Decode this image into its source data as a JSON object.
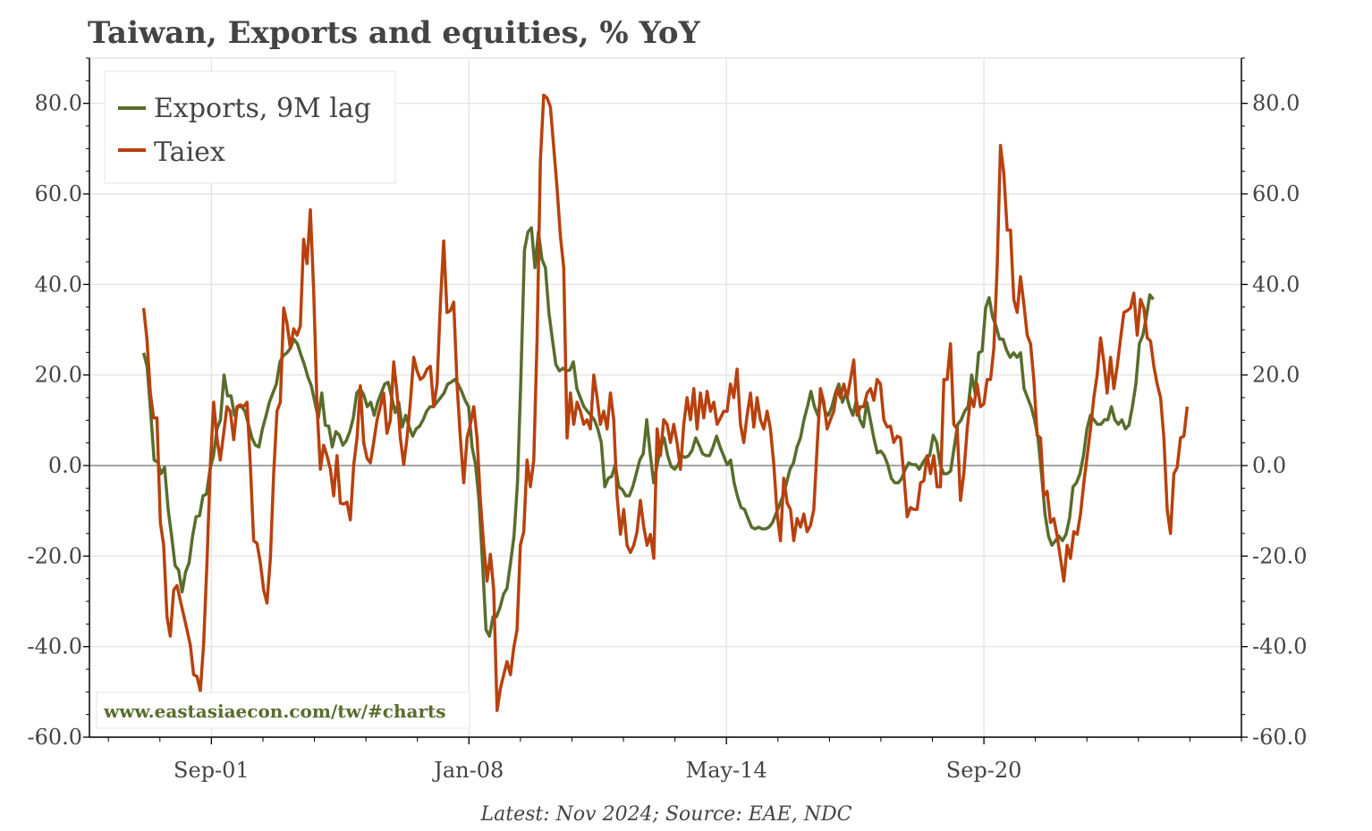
{
  "chart_data": {
    "type": "line",
    "title": "Taiwan, Exports and equities, % YoY",
    "footer": "Latest: Nov 2024; Source: EAE, NDC",
    "watermark": "www.eastasiaecon.com/tw/#charts",
    "xlabel": "",
    "ylabel": "",
    "xlim": [
      "1998-09",
      "2027-01"
    ],
    "ylim": [
      -60,
      90
    ],
    "x_ticks": [
      {
        "date": "2001-09",
        "label": "Sep-01"
      },
      {
        "date": "2008-01",
        "label": "Jan-08"
      },
      {
        "date": "2014-05",
        "label": "May-14"
      },
      {
        "date": "2020-09",
        "label": "Sep-20"
      }
    ],
    "y_ticks": [
      80,
      60,
      40,
      20,
      0,
      -20,
      -40,
      -60
    ],
    "y_tick_labels": [
      "80.0",
      "60.0",
      "40.0",
      "20.0",
      "0.0",
      "-20.0",
      "-40.0",
      "-60.0"
    ],
    "y_axis_both_sides": true,
    "grid": true,
    "legend_position": "top-left",
    "colors": {
      "exports": "#586d2c",
      "taiex": "#b8410e",
      "grid": "#e6e6e6",
      "zero_line": "#888888",
      "text": "#444444"
    },
    "series": [
      {
        "name": "Exports, 9M lag",
        "color": "#586d2c",
        "start": "2000-01",
        "end": "2024-11",
        "values": [
          24.9,
          21.9,
          12.0,
          1.2,
          0.8,
          -1.8,
          -0.4,
          -9.7,
          -15.6,
          -22.1,
          -23.1,
          -27.9,
          -23.5,
          -21.5,
          -15.6,
          -11.3,
          -11.1,
          -6.7,
          -6.3,
          -0.8,
          2.2,
          8.1,
          10.1,
          20.0,
          15.4,
          15.4,
          11.1,
          13.0,
          13.0,
          12.0,
          9.1,
          6.1,
          4.5,
          4.1,
          8.1,
          10.9,
          14.0,
          16.0,
          18.0,
          22.9,
          24.3,
          24.9,
          25.9,
          27.9,
          26.9,
          24.5,
          22.3,
          19.6,
          17.6,
          14.0,
          10.5,
          16.0,
          8.9,
          8.7,
          4.1,
          7.5,
          6.7,
          4.5,
          5.5,
          7.5,
          10.5,
          16.0,
          17.0,
          15.6,
          13.0,
          14.0,
          11.1,
          14.0,
          16.0,
          18.0,
          18.4,
          15.0,
          11.7,
          14.0,
          8.5,
          11.1,
          8.5,
          6.5,
          8.1,
          8.7,
          10.1,
          12.0,
          13.0,
          13.0,
          14.0,
          15.0,
          16.0,
          18.0,
          18.4,
          19.0,
          18.0,
          16.4,
          14.4,
          13.0,
          4.1,
          0.2,
          -7.7,
          -21.5,
          -36.3,
          -37.7,
          -33.4,
          -33.4,
          -31.4,
          -28.4,
          -27.1,
          -21.5,
          -15.6,
          -3.8,
          20.0,
          47.6,
          51.6,
          52.5,
          43.7,
          51.6,
          45.6,
          43.7,
          33.8,
          27.9,
          22.3,
          20.9,
          21.5,
          20.9,
          21.1,
          22.9,
          17.0,
          15.0,
          13.0,
          12.0,
          11.1,
          10.1,
          8.1,
          5.1,
          -4.7,
          -2.8,
          -2.4,
          0.2,
          -4.7,
          -5.3,
          -6.7,
          -6.7,
          -4.7,
          -1.8,
          1.2,
          2.6,
          10.1,
          2.6,
          -3.8,
          0.2,
          4.1,
          6.1,
          2.2,
          -0.2,
          -0.8,
          0.2,
          2.2,
          1.8,
          2.2,
          3.4,
          6.1,
          4.5,
          2.6,
          2.2,
          2.2,
          4.1,
          6.5,
          4.1,
          2.2,
          0.2,
          1.2,
          -3.8,
          -6.9,
          -9.3,
          -9.7,
          -11.7,
          -13.6,
          -14.0,
          -13.6,
          -14.0,
          -14.0,
          -13.6,
          -12.6,
          -10.7,
          -8.7,
          -6.7,
          -3.8,
          -0.8,
          0.6,
          4.1,
          6.1,
          10.1,
          13.0,
          16.4,
          13.0,
          11.1,
          16.0,
          12.0,
          11.1,
          13.0,
          16.0,
          18.0,
          14.0,
          16.0,
          13.0,
          11.1,
          14.4,
          10.1,
          8.5,
          14.0,
          10.1,
          6.1,
          2.8,
          3.2,
          2.2,
          0.2,
          -2.8,
          -3.8,
          -3.8,
          -2.8,
          -0.8,
          0.6,
          0.2,
          0.2,
          -0.8,
          0.6,
          1.8,
          2.2,
          6.7,
          5.1,
          0.2,
          -1.8,
          -1.8,
          -1.2,
          4.1,
          9.1,
          10.1,
          12.0,
          13.0,
          20.0,
          16.0,
          24.9,
          25.3,
          34.8,
          37.1,
          32.8,
          30.8,
          27.9,
          27.9,
          25.5,
          23.9,
          24.9,
          23.9,
          24.9,
          17.0,
          15.0,
          13.0,
          10.1,
          6.1,
          -1.8,
          -10.7,
          -15.6,
          -17.6,
          -16.6,
          -15.6,
          -16.6,
          -15.2,
          -11.7,
          -4.7,
          -3.8,
          -1.8,
          2.2,
          8.1,
          11.1,
          10.1,
          9.1,
          9.1,
          10.1,
          10.1,
          13.0,
          10.1,
          9.1,
          10.1,
          8.1,
          8.9,
          13.0,
          18.0,
          26.9,
          28.8,
          32.8,
          37.7,
          36.7
        ]
      },
      {
        "name": "Taiex",
        "color": "#b8410e",
        "start": "2000-01",
        "end": "2025-09",
        "values": [
          34.8,
          27.9,
          16.0,
          10.5,
          10.5,
          -12.6,
          -17.6,
          -33.4,
          -37.7,
          -27.5,
          -26.5,
          -29.8,
          -33.0,
          -36.3,
          -39.7,
          -46.2,
          -46.6,
          -49.8,
          -39.3,
          -21.5,
          0.2,
          14.0,
          6.1,
          1.2,
          7.1,
          13.0,
          12.0,
          5.7,
          13.0,
          13.4,
          13.0,
          14.0,
          0.2,
          -16.6,
          -17.2,
          -21.5,
          -27.5,
          -30.4,
          -20.5,
          -1.8,
          12.0,
          14.0,
          34.8,
          31.4,
          25.9,
          30.2,
          28.8,
          30.8,
          50.0,
          44.6,
          56.5,
          38.7,
          13.0,
          -0.8,
          4.5,
          2.2,
          -0.8,
          -6.7,
          2.2,
          -8.3,
          -8.5,
          -8.1,
          -12.0,
          0.2,
          6.1,
          17.6,
          5.1,
          1.6,
          0.6,
          5.1,
          10.1,
          13.0,
          16.0,
          7.1,
          10.1,
          22.9,
          16.0,
          6.1,
          0.2,
          6.1,
          14.0,
          23.9,
          20.9,
          19.0,
          19.6,
          21.3,
          21.9,
          13.0,
          18.0,
          35.8,
          49.6,
          33.8,
          34.2,
          36.1,
          18.0,
          6.1,
          -3.8,
          6.1,
          9.1,
          13.0,
          6.1,
          -7.7,
          -17.6,
          -25.5,
          -19.6,
          -27.5,
          -54.1,
          -49.2,
          -46.2,
          -43.3,
          -46.2,
          -40.3,
          -36.3,
          -17.6,
          -14.6,
          1.2,
          -4.7,
          1.2,
          27.9,
          67.4,
          81.8,
          81.2,
          79.2,
          70.3,
          61.4,
          50.6,
          43.7,
          6.1,
          16.0,
          9.1,
          14.0,
          12.0,
          9.1,
          10.1,
          8.1,
          20.0,
          15.0,
          9.1,
          12.0,
          8.1,
          16.0,
          10.1,
          -6.7,
          -15.2,
          -9.7,
          -17.6,
          -19.2,
          -17.6,
          -14.6,
          -7.7,
          -13.6,
          -17.6,
          -15.2,
          -20.5,
          8.1,
          2.2,
          10.1,
          9.1,
          5.1,
          9.1,
          5.1,
          -0.8,
          9.1,
          15.0,
          10.1,
          17.0,
          8.1,
          16.0,
          10.5,
          16.4,
          12.0,
          14.0,
          9.1,
          10.5,
          12.0,
          12.0,
          18.0,
          15.0,
          21.3,
          9.1,
          5.1,
          11.1,
          16.0,
          8.5,
          15.0,
          10.1,
          8.1,
          12.0,
          8.1,
          0.2,
          -10.7,
          -16.6,
          -2.8,
          -8.3,
          -9.7,
          -16.6,
          -11.7,
          -13.6,
          -10.7,
          -14.6,
          -13.2,
          -9.7,
          4.1,
          17.0,
          14.0,
          8.1,
          10.1,
          12.0,
          17.0,
          15.0,
          18.0,
          15.0,
          19.0,
          23.3,
          11.1,
          13.0,
          13.0,
          16.0,
          17.0,
          14.4,
          19.0,
          18.0,
          10.1,
          8.5,
          8.7,
          5.1,
          6.5,
          6.1,
          -1.8,
          -11.3,
          -9.3,
          -9.7,
          -9.7,
          -3.8,
          -3.4,
          2.2,
          -1.8,
          2.2,
          -4.7,
          -4.7,
          19.0,
          19.0,
          26.9,
          9.1,
          8.1,
          -7.7,
          -1.8,
          8.1,
          15.0,
          13.0,
          18.0,
          13.0,
          13.6,
          19.0,
          19.0,
          25.9,
          43.7,
          70.7,
          64.4,
          52.0,
          52.0,
          36.7,
          33.8,
          41.7,
          35.8,
          28.8,
          26.9,
          19.0,
          6.7,
          6.1,
          -6.7,
          -5.7,
          -12.6,
          -11.7,
          -15.6,
          -20.5,
          -25.5,
          -17.6,
          -20.5,
          -14.6,
          -15.2,
          -10.7,
          -3.8,
          2.2,
          8.1,
          15.0,
          20.0,
          28.2,
          22.9,
          16.0,
          23.9,
          17.0,
          21.9,
          27.9,
          33.8,
          34.2,
          34.8,
          38.1,
          28.8,
          36.7,
          34.8,
          28.2,
          27.5,
          21.9,
          18.0,
          15.0,
          6.1,
          -9.7,
          -15.0,
          -1.8,
          -0.4,
          6.1,
          6.5,
          13.0
        ]
      }
    ]
  }
}
